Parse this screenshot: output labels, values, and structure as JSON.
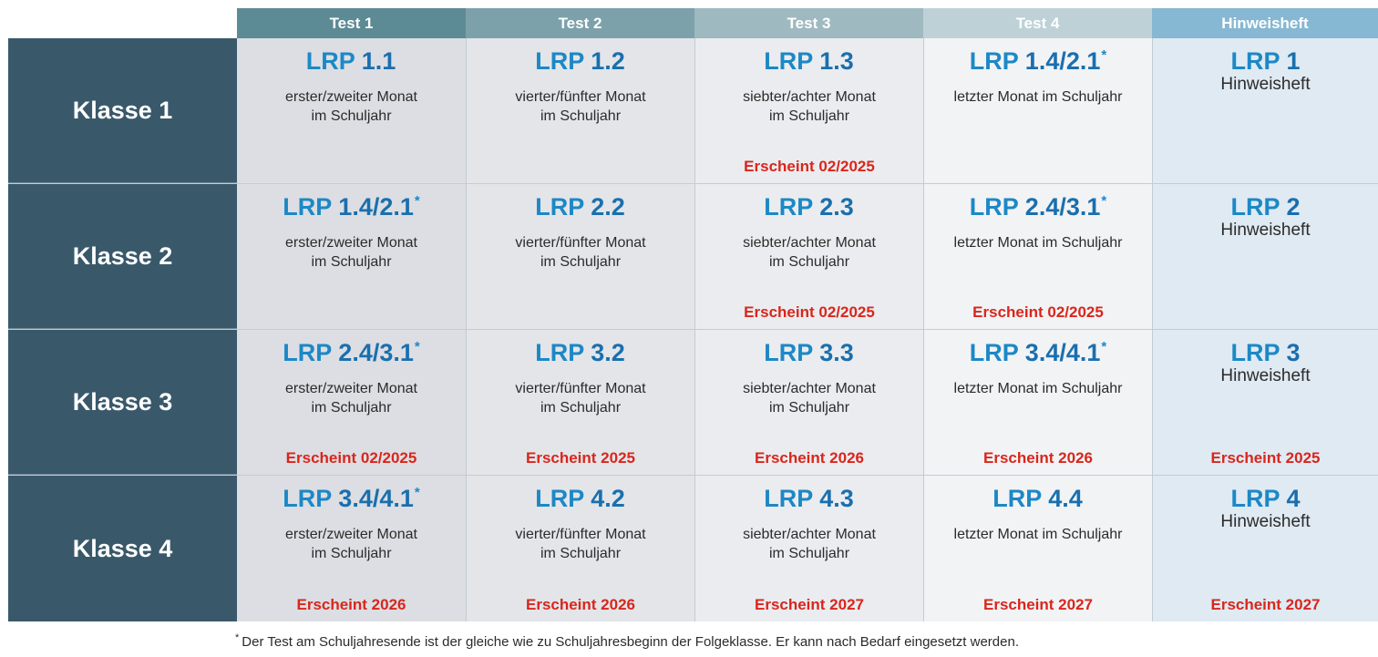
{
  "headers": [
    {
      "label": "Test 1",
      "color": "#5c8a95"
    },
    {
      "label": "Test 2",
      "color": "#7da1ab"
    },
    {
      "label": "Test 3",
      "color": "#9fb9c0"
    },
    {
      "label": "Test 4",
      "color": "#bed1d6"
    },
    {
      "label": "Hinweisheft",
      "color": "#86b7d3"
    }
  ],
  "rows": [
    {
      "label": "Klasse 1",
      "cells": [
        {
          "prefix": "LRP",
          "code": "1.1",
          "star": "",
          "desc": "erster/zweiter Monat\nim Schuljahr",
          "release": ""
        },
        {
          "prefix": "LRP",
          "code": "1.2",
          "star": "",
          "desc": "vierter/fünfter Monat\nim Schuljahr",
          "release": ""
        },
        {
          "prefix": "LRP",
          "code": "1.3",
          "star": "",
          "desc": "siebter/achter Monat\nim Schuljahr",
          "release": "Erscheint 02/2025"
        },
        {
          "prefix": "LRP",
          "code": "1.4/2.1",
          "star": "*",
          "desc": "letzter Monat im Schuljahr",
          "release": ""
        }
      ],
      "hint": {
        "prefix": "LRP",
        "code": "1",
        "sub": "Hinweisheft",
        "release": ""
      }
    },
    {
      "label": "Klasse 2",
      "cells": [
        {
          "prefix": "LRP",
          "code": "1.4/2.1",
          "star": "*",
          "desc": "erster/zweiter Monat\nim Schuljahr",
          "release": ""
        },
        {
          "prefix": "LRP",
          "code": "2.2",
          "star": "",
          "desc": "vierter/fünfter Monat\nim Schuljahr",
          "release": ""
        },
        {
          "prefix": "LRP",
          "code": "2.3",
          "star": "",
          "desc": "siebter/achter Monat\nim Schuljahr",
          "release": "Erscheint 02/2025"
        },
        {
          "prefix": "LRP",
          "code": "2.4/3.1",
          "star": "*",
          "desc": "letzter Monat im Schuljahr",
          "release": "Erscheint 02/2025"
        }
      ],
      "hint": {
        "prefix": "LRP",
        "code": "2",
        "sub": "Hinweisheft",
        "release": ""
      }
    },
    {
      "label": "Klasse 3",
      "cells": [
        {
          "prefix": "LRP",
          "code": "2.4/3.1",
          "star": "*",
          "desc": "erster/zweiter Monat\nim Schuljahr",
          "release": "Erscheint 02/2025"
        },
        {
          "prefix": "LRP",
          "code": "3.2",
          "star": "",
          "desc": "vierter/fünfter Monat\nim Schuljahr",
          "release": "Erscheint 2025"
        },
        {
          "prefix": "LRP",
          "code": "3.3",
          "star": "",
          "desc": "siebter/achter Monat\nim Schuljahr",
          "release": "Erscheint 2026"
        },
        {
          "prefix": "LRP",
          "code": "3.4/4.1",
          "star": "*",
          "desc": "letzter Monat im Schuljahr",
          "release": "Erscheint 2026"
        }
      ],
      "hint": {
        "prefix": "LRP",
        "code": "3",
        "sub": "Hinweisheft",
        "release": "Erscheint 2025"
      }
    },
    {
      "label": "Klasse 4",
      "cells": [
        {
          "prefix": "LRP",
          "code": "3.4/4.1",
          "star": "*",
          "desc": "erster/zweiter Monat\nim Schuljahr",
          "release": "Erscheint 2026"
        },
        {
          "prefix": "LRP",
          "code": "4.2",
          "star": "",
          "desc": "vierter/fünfter Monat\nim Schuljahr",
          "release": "Erscheint 2026"
        },
        {
          "prefix": "LRP",
          "code": "4.3",
          "star": "",
          "desc": "siebter/achter Monat\nim Schuljahr",
          "release": "Erscheint 2027"
        },
        {
          "prefix": "LRP",
          "code": "4.4",
          "star": "",
          "desc": "letzter Monat im Schuljahr",
          "release": "Erscheint 2027"
        }
      ],
      "hint": {
        "prefix": "LRP",
        "code": "4",
        "sub": "Hinweisheft",
        "release": "Erscheint 2027"
      }
    }
  ],
  "footnote": {
    "mark": "*",
    "text": "Der Test am Schuljahresende ist der gleiche wie zu Schuljahresbeginn der Folgeklasse. Er kann nach Bedarf eingesetzt werden."
  }
}
